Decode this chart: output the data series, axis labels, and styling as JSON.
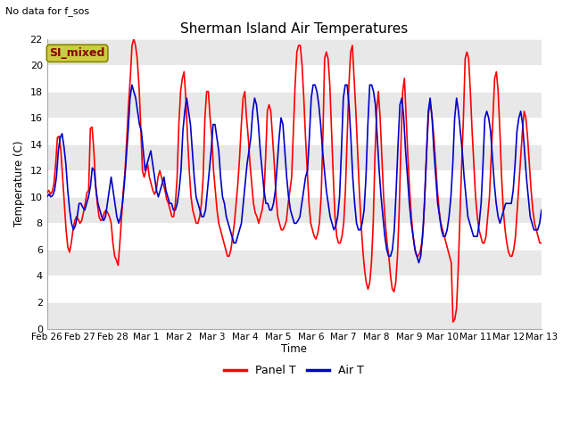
{
  "title": "Sherman Island Air Temperatures",
  "subtitle": "No data for f_sos",
  "xlabel": "Time",
  "ylabel": "Temperature (C)",
  "ylim": [
    0,
    22
  ],
  "legend_label_red": "Panel T",
  "legend_label_blue": "Air T",
  "annotation_box": "SI_mixed",
  "annotation_box_color": "#cccc44",
  "annotation_text_color": "#880000",
  "background_color": "#ffffff",
  "plot_bg_color": "#ffffff",
  "grid_color": "#dddddd",
  "xtick_labels": [
    "Feb 26",
    "Feb 27",
    "Feb 28",
    "Mar 1",
    "Mar 2",
    "Mar 3",
    "Mar 4",
    "Mar 5",
    "Mar 6",
    "Mar 7",
    "Mar 8",
    "Mar 9",
    "Mar 10",
    "Mar 11",
    "Mar 12",
    "Mar 13"
  ],
  "red_color": "#ff0000",
  "blue_color": "#0000cc",
  "line_width": 1.2,
  "panel_t": [
    10.3,
    10.5,
    10.2,
    10.4,
    11.0,
    12.5,
    14.5,
    14.6,
    13.5,
    11.5,
    9.5,
    7.5,
    6.2,
    5.8,
    6.5,
    7.5,
    8.2,
    8.5,
    8.3,
    8.0,
    8.2,
    8.8,
    9.5,
    10.3,
    10.5,
    15.2,
    15.3,
    13.5,
    11.0,
    9.5,
    8.5,
    8.2,
    8.3,
    8.8,
    9.0,
    8.8,
    8.5,
    8.0,
    6.5,
    5.5,
    5.2,
    4.8,
    6.5,
    8.5,
    10.5,
    12.0,
    14.5,
    17.0,
    19.0,
    21.5,
    22.0,
    21.5,
    20.5,
    18.5,
    15.5,
    12.0,
    11.5,
    12.0,
    12.5,
    11.5,
    11.0,
    10.5,
    10.2,
    10.5,
    11.5,
    12.0,
    11.5,
    11.0,
    10.5,
    9.8,
    9.5,
    9.0,
    8.5,
    8.5,
    9.5,
    11.5,
    15.5,
    18.0,
    19.0,
    19.5,
    17.5,
    14.5,
    12.0,
    10.0,
    9.0,
    8.5,
    8.0,
    8.0,
    8.5,
    9.5,
    11.5,
    16.0,
    18.0,
    18.0,
    16.0,
    14.5,
    12.0,
    10.5,
    9.0,
    8.0,
    7.5,
    7.0,
    6.5,
    6.0,
    5.5,
    5.5,
    6.0,
    7.0,
    8.0,
    9.5,
    11.0,
    13.0,
    15.5,
    17.5,
    18.0,
    16.0,
    14.5,
    12.5,
    11.0,
    9.5,
    8.8,
    8.5,
    8.0,
    8.5,
    9.0,
    10.0,
    13.0,
    16.5,
    17.0,
    16.5,
    14.5,
    12.5,
    10.0,
    8.5,
    8.0,
    7.5,
    7.5,
    7.8,
    8.2,
    9.5,
    10.5,
    11.5,
    15.0,
    18.5,
    21.0,
    21.5,
    21.5,
    20.0,
    17.5,
    14.5,
    12.0,
    9.5,
    8.0,
    7.5,
    7.0,
    6.8,
    7.2,
    8.0,
    10.0,
    14.5,
    20.5,
    21.0,
    20.5,
    18.5,
    15.0,
    11.5,
    8.5,
    7.0,
    6.5,
    6.5,
    7.0,
    8.0,
    10.5,
    14.5,
    18.5,
    21.0,
    21.5,
    19.0,
    16.5,
    13.5,
    10.5,
    8.0,
    6.0,
    4.5,
    3.5,
    3.0,
    3.5,
    5.0,
    8.0,
    13.0,
    16.5,
    18.0,
    16.0,
    13.0,
    10.0,
    8.0,
    6.5,
    5.5,
    4.0,
    3.0,
    2.8,
    3.5,
    5.5,
    9.0,
    14.0,
    18.0,
    19.0,
    16.0,
    13.0,
    10.5,
    8.5,
    7.0,
    6.0,
    5.5,
    5.5,
    5.8,
    6.5,
    8.0,
    11.0,
    14.0,
    16.5,
    17.0,
    16.0,
    14.5,
    12.5,
    10.5,
    9.0,
    8.0,
    7.5,
    7.0,
    6.5,
    6.0,
    5.5,
    5.0,
    0.5,
    0.7,
    1.5,
    4.5,
    8.5,
    12.5,
    16.0,
    20.5,
    21.0,
    20.5,
    18.0,
    15.0,
    12.5,
    10.0,
    8.5,
    7.5,
    7.0,
    6.5,
    6.5,
    7.0,
    8.5,
    10.0,
    13.0,
    16.0,
    19.0,
    19.5,
    18.0,
    15.0,
    11.5,
    9.0,
    7.5,
    6.5,
    5.8,
    5.5,
    5.5,
    6.0,
    7.0,
    9.0,
    11.0,
    13.0,
    15.0,
    16.5,
    16.0,
    14.5,
    12.5,
    10.5,
    9.0,
    8.0,
    7.5,
    7.0,
    6.5,
    6.5
  ],
  "air_t": [
    10.0,
    10.2,
    10.0,
    10.1,
    10.5,
    11.5,
    13.5,
    14.5,
    14.8,
    13.8,
    12.5,
    10.5,
    9.0,
    8.0,
    7.5,
    7.8,
    8.5,
    9.5,
    9.5,
    9.2,
    9.0,
    9.5,
    10.0,
    10.8,
    12.2,
    12.0,
    10.5,
    9.5,
    9.0,
    8.5,
    8.2,
    8.5,
    9.5,
    10.5,
    11.5,
    10.5,
    9.5,
    8.5,
    8.0,
    8.5,
    9.5,
    11.0,
    13.0,
    15.0,
    17.5,
    18.5,
    18.0,
    17.5,
    16.5,
    15.5,
    15.0,
    13.5,
    12.0,
    12.5,
    13.0,
    13.5,
    12.5,
    11.5,
    10.5,
    10.0,
    10.5,
    11.0,
    11.5,
    10.5,
    10.0,
    9.5,
    9.5,
    9.0,
    9.0,
    9.5,
    10.5,
    12.0,
    15.0,
    16.5,
    17.5,
    16.5,
    15.5,
    13.5,
    11.5,
    10.0,
    9.5,
    9.0,
    8.5,
    8.5,
    9.0,
    10.5,
    12.0,
    13.5,
    15.5,
    15.5,
    14.5,
    13.5,
    11.5,
    10.0,
    9.5,
    8.5,
    8.0,
    7.5,
    7.0,
    6.5,
    6.5,
    7.0,
    7.5,
    8.0,
    9.5,
    11.0,
    12.5,
    13.5,
    14.5,
    16.5,
    17.5,
    17.0,
    15.5,
    13.5,
    12.0,
    10.5,
    9.5,
    9.5,
    9.0,
    9.0,
    9.5,
    10.5,
    12.5,
    14.5,
    16.0,
    15.5,
    13.5,
    11.5,
    10.0,
    9.0,
    8.5,
    8.0,
    8.0,
    8.2,
    8.5,
    9.5,
    10.5,
    11.5,
    12.0,
    14.5,
    17.5,
    18.5,
    18.5,
    18.0,
    17.0,
    15.5,
    13.5,
    12.0,
    10.5,
    9.5,
    8.5,
    8.0,
    7.5,
    7.8,
    8.5,
    10.0,
    13.5,
    17.5,
    18.5,
    18.5,
    17.0,
    14.5,
    11.5,
    9.5,
    8.0,
    7.5,
    7.5,
    8.0,
    9.0,
    11.5,
    15.5,
    18.5,
    18.5,
    18.0,
    17.0,
    14.5,
    12.0,
    10.0,
    8.5,
    7.0,
    6.0,
    5.5,
    5.5,
    6.0,
    7.5,
    10.5,
    14.0,
    17.0,
    17.5,
    16.0,
    13.5,
    11.5,
    9.5,
    8.0,
    7.0,
    6.0,
    5.5,
    5.0,
    5.5,
    7.0,
    9.5,
    13.0,
    16.5,
    17.5,
    16.0,
    13.5,
    11.5,
    9.5,
    8.5,
    7.5,
    7.0,
    7.0,
    7.5,
    8.5,
    10.0,
    12.5,
    16.0,
    17.5,
    16.5,
    15.0,
    13.5,
    11.5,
    10.0,
    8.5,
    8.0,
    7.5,
    7.0,
    7.0,
    7.0,
    8.0,
    9.5,
    12.5,
    16.0,
    16.5,
    16.0,
    15.0,
    13.0,
    11.0,
    9.5,
    8.5,
    8.0,
    8.5,
    9.0,
    9.5,
    9.5,
    9.5,
    9.5,
    10.5,
    12.5,
    15.0,
    16.0,
    16.5,
    15.5,
    13.5,
    11.5,
    10.0,
    8.5,
    8.0,
    7.5,
    7.5,
    7.5,
    8.0,
    9.0
  ]
}
